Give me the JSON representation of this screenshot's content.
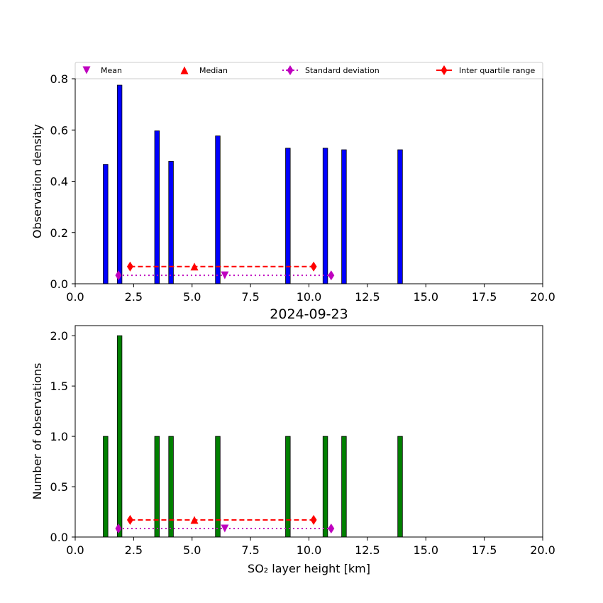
{
  "chart_data": [
    {
      "type": "bar",
      "title": "",
      "xlabel": "",
      "ylabel": "Observation density",
      "xlim": [
        0,
        20
      ],
      "ylim": [
        0,
        0.8
      ],
      "xticks": [
        "0.0",
        "2.5",
        "5.0",
        "7.5",
        "10.0",
        "12.5",
        "15.0",
        "17.5",
        "20.0"
      ],
      "yticks": [
        "0.0",
        "0.2",
        "0.4",
        "0.6",
        "0.8"
      ],
      "bar_color": "#0000ff",
      "bar_width": 0.2,
      "bars": [
        {
          "x": 1.3,
          "value": 0.466
        },
        {
          "x": 1.9,
          "value": 0.775
        },
        {
          "x": 3.5,
          "value": 0.597
        },
        {
          "x": 4.1,
          "value": 0.478
        },
        {
          "x": 6.1,
          "value": 0.577
        },
        {
          "x": 9.1,
          "value": 0.529
        },
        {
          "x": 10.7,
          "value": 0.529
        },
        {
          "x": 11.5,
          "value": 0.523
        },
        {
          "x": 13.9,
          "value": 0.523
        }
      ],
      "markers_y": {
        "std": 0.033,
        "iqr": 0.067
      },
      "legend": {
        "position": "top",
        "entries": [
          "Mean",
          "Median",
          "Standard deviation",
          "Inter quartile range"
        ]
      }
    },
    {
      "type": "bar",
      "title": "2024-09-23",
      "xlabel": "SO₂ layer height [km]",
      "ylabel": "Number of observations",
      "xlim": [
        0,
        20
      ],
      "ylim": [
        0,
        2.1
      ],
      "xticks": [
        "0.0",
        "2.5",
        "5.0",
        "7.5",
        "10.0",
        "12.5",
        "15.0",
        "17.5",
        "20.0"
      ],
      "yticks": [
        "0.0",
        "0.5",
        "1.0",
        "1.5",
        "2.0"
      ],
      "bar_color": "#008000",
      "bar_width": 0.2,
      "bars": [
        {
          "x": 1.3,
          "value": 1
        },
        {
          "x": 1.9,
          "value": 2
        },
        {
          "x": 3.5,
          "value": 1
        },
        {
          "x": 4.1,
          "value": 1
        },
        {
          "x": 6.1,
          "value": 1
        },
        {
          "x": 9.1,
          "value": 1
        },
        {
          "x": 10.7,
          "value": 1
        },
        {
          "x": 11.5,
          "value": 1
        },
        {
          "x": 13.9,
          "value": 1
        }
      ],
      "markers_y": {
        "std": 0.085,
        "iqr": 0.17
      }
    }
  ],
  "statistics": {
    "mean": 6.4,
    "median": 5.1,
    "std_range": [
      1.85,
      10.95
    ],
    "iqr_range": [
      2.35,
      10.2
    ]
  },
  "colors": {
    "mean": "#bf00bf",
    "median": "#ff0000",
    "std": "#bf00bf",
    "iqr": "#ff0000"
  }
}
